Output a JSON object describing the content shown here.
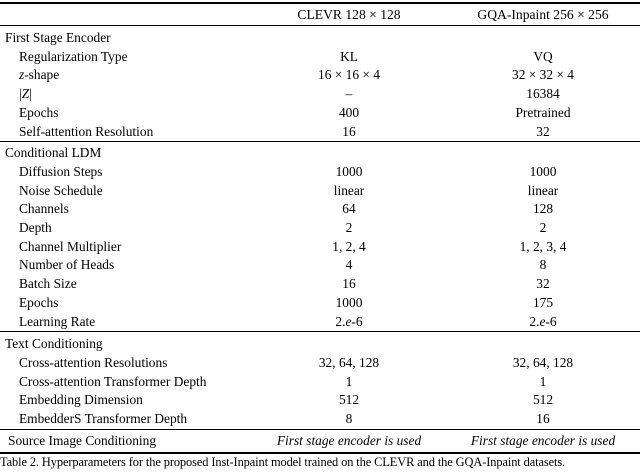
{
  "table": {
    "column_headers": [
      "CLEVR 128 × 128",
      "GQA-Inpaint 256 × 256"
    ],
    "sections": [
      {
        "title": "First Stage Encoder",
        "rows": [
          {
            "label": "Regularization Type",
            "values": [
              "KL",
              "VQ"
            ]
          },
          {
            "label": "*z*-shape",
            "values": [
              "16 × 16 × 4",
              "32 × 32 × 4"
            ]
          },
          {
            "label": "|*Z*|",
            "values": [
              "–",
              "16384"
            ]
          },
          {
            "label": "Epochs",
            "values": [
              "400",
              "Pretrained"
            ]
          },
          {
            "label": "Self-attention Resolution",
            "values": [
              "16",
              "32"
            ]
          }
        ]
      },
      {
        "title": "Conditional LDM",
        "rows": [
          {
            "label": "Diffusion Steps",
            "values": [
              "1000",
              "1000"
            ]
          },
          {
            "label": "Noise Schedule",
            "values": [
              "linear",
              "linear"
            ]
          },
          {
            "label": "Channels",
            "values": [
              "64",
              "128"
            ]
          },
          {
            "label": "Depth",
            "values": [
              "2",
              "2"
            ]
          },
          {
            "label": "Channel Multiplier",
            "values": [
              "1, 2, 4",
              "1, 2, 3, 4"
            ]
          },
          {
            "label": "Number of Heads",
            "values": [
              "4",
              "8"
            ]
          },
          {
            "label": "Batch Size",
            "values": [
              "16",
              "32"
            ]
          },
          {
            "label": "Epochs",
            "values": [
              "1000",
              "175"
            ]
          },
          {
            "label": "Learning Rate",
            "values": [
              "2.*e*-6",
              "2.*e*-6"
            ]
          }
        ]
      },
      {
        "title": "Text Conditioning",
        "rows": [
          {
            "label": "Cross-attention Resolutions",
            "values": [
              "32, 64, 128",
              "32, 64, 128"
            ]
          },
          {
            "label": "Cross-attention Transformer Depth",
            "values": [
              "1",
              "1"
            ]
          },
          {
            "label": "Embedding Dimension",
            "values": [
              "512",
              "512"
            ]
          },
          {
            "label": "EmbedderS Transformer Depth",
            "values": [
              "8",
              "16"
            ]
          }
        ]
      }
    ],
    "source_row": {
      "label": "Source Image Conditioning",
      "values": [
        "First stage encoder is used",
        "First stage encoder is used"
      ]
    }
  },
  "caption": "Table 2. Hyperparameters for the proposed Inst-Inpaint model trained on the CLEVR and the GQA-Inpaint datasets."
}
